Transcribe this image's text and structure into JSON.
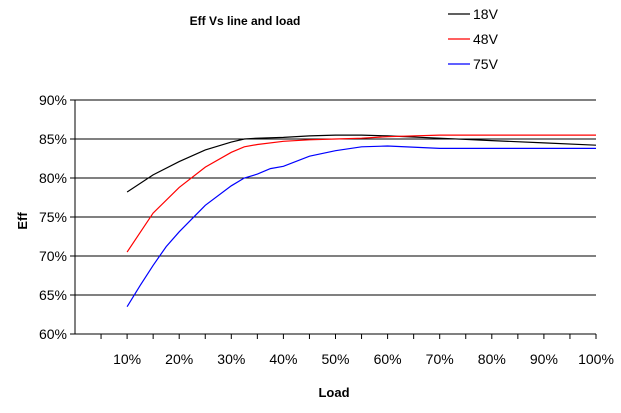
{
  "chart_data": {
    "type": "line",
    "title": "Eff Vs line and load",
    "xlabel": "Load",
    "ylabel": "Eff",
    "x_tick_labels": [
      "10%",
      "20%",
      "30%",
      "40%",
      "50%",
      "60%",
      "70%",
      "80%",
      "90%",
      "100%"
    ],
    "y_tick_labels": [
      "60%",
      "65%",
      "70%",
      "75%",
      "80%",
      "85%",
      "90%"
    ],
    "xlim": [
      0,
      100
    ],
    "ylim": [
      60,
      90
    ],
    "grid": "horizontal",
    "legend": "top-right",
    "series": [
      {
        "name": "18V",
        "color": "#000000",
        "x": [
          10,
          15,
          20,
          25,
          30,
          32.5,
          35,
          40,
          45,
          50,
          55,
          60,
          70,
          80,
          90,
          100
        ],
        "y": [
          78.2,
          80.4,
          82.1,
          83.6,
          84.6,
          85.0,
          85.1,
          85.2,
          85.4,
          85.5,
          85.5,
          85.4,
          85.1,
          84.8,
          84.5,
          84.2
        ]
      },
      {
        "name": "48V",
        "color": "#ff0000",
        "x": [
          10,
          12.5,
          15,
          20,
          25,
          30,
          32.5,
          35,
          40,
          45,
          50,
          55,
          60,
          70,
          80,
          90,
          100
        ],
        "y": [
          70.5,
          73.0,
          75.5,
          78.8,
          81.4,
          83.3,
          84.0,
          84.3,
          84.7,
          84.9,
          85.0,
          85.1,
          85.3,
          85.5,
          85.5,
          85.5,
          85.5
        ]
      },
      {
        "name": "75V",
        "color": "#0000ff",
        "x": [
          10,
          12.5,
          15,
          17.5,
          20,
          25,
          30,
          32.5,
          35,
          37.5,
          40,
          45,
          50,
          55,
          60,
          70,
          80,
          90,
          100
        ],
        "y": [
          63.5,
          66.2,
          68.8,
          71.2,
          73.1,
          76.5,
          79.0,
          80.0,
          80.5,
          81.2,
          81.5,
          82.8,
          83.5,
          84.0,
          84.1,
          83.8,
          83.8,
          83.8,
          83.8
        ]
      }
    ]
  }
}
